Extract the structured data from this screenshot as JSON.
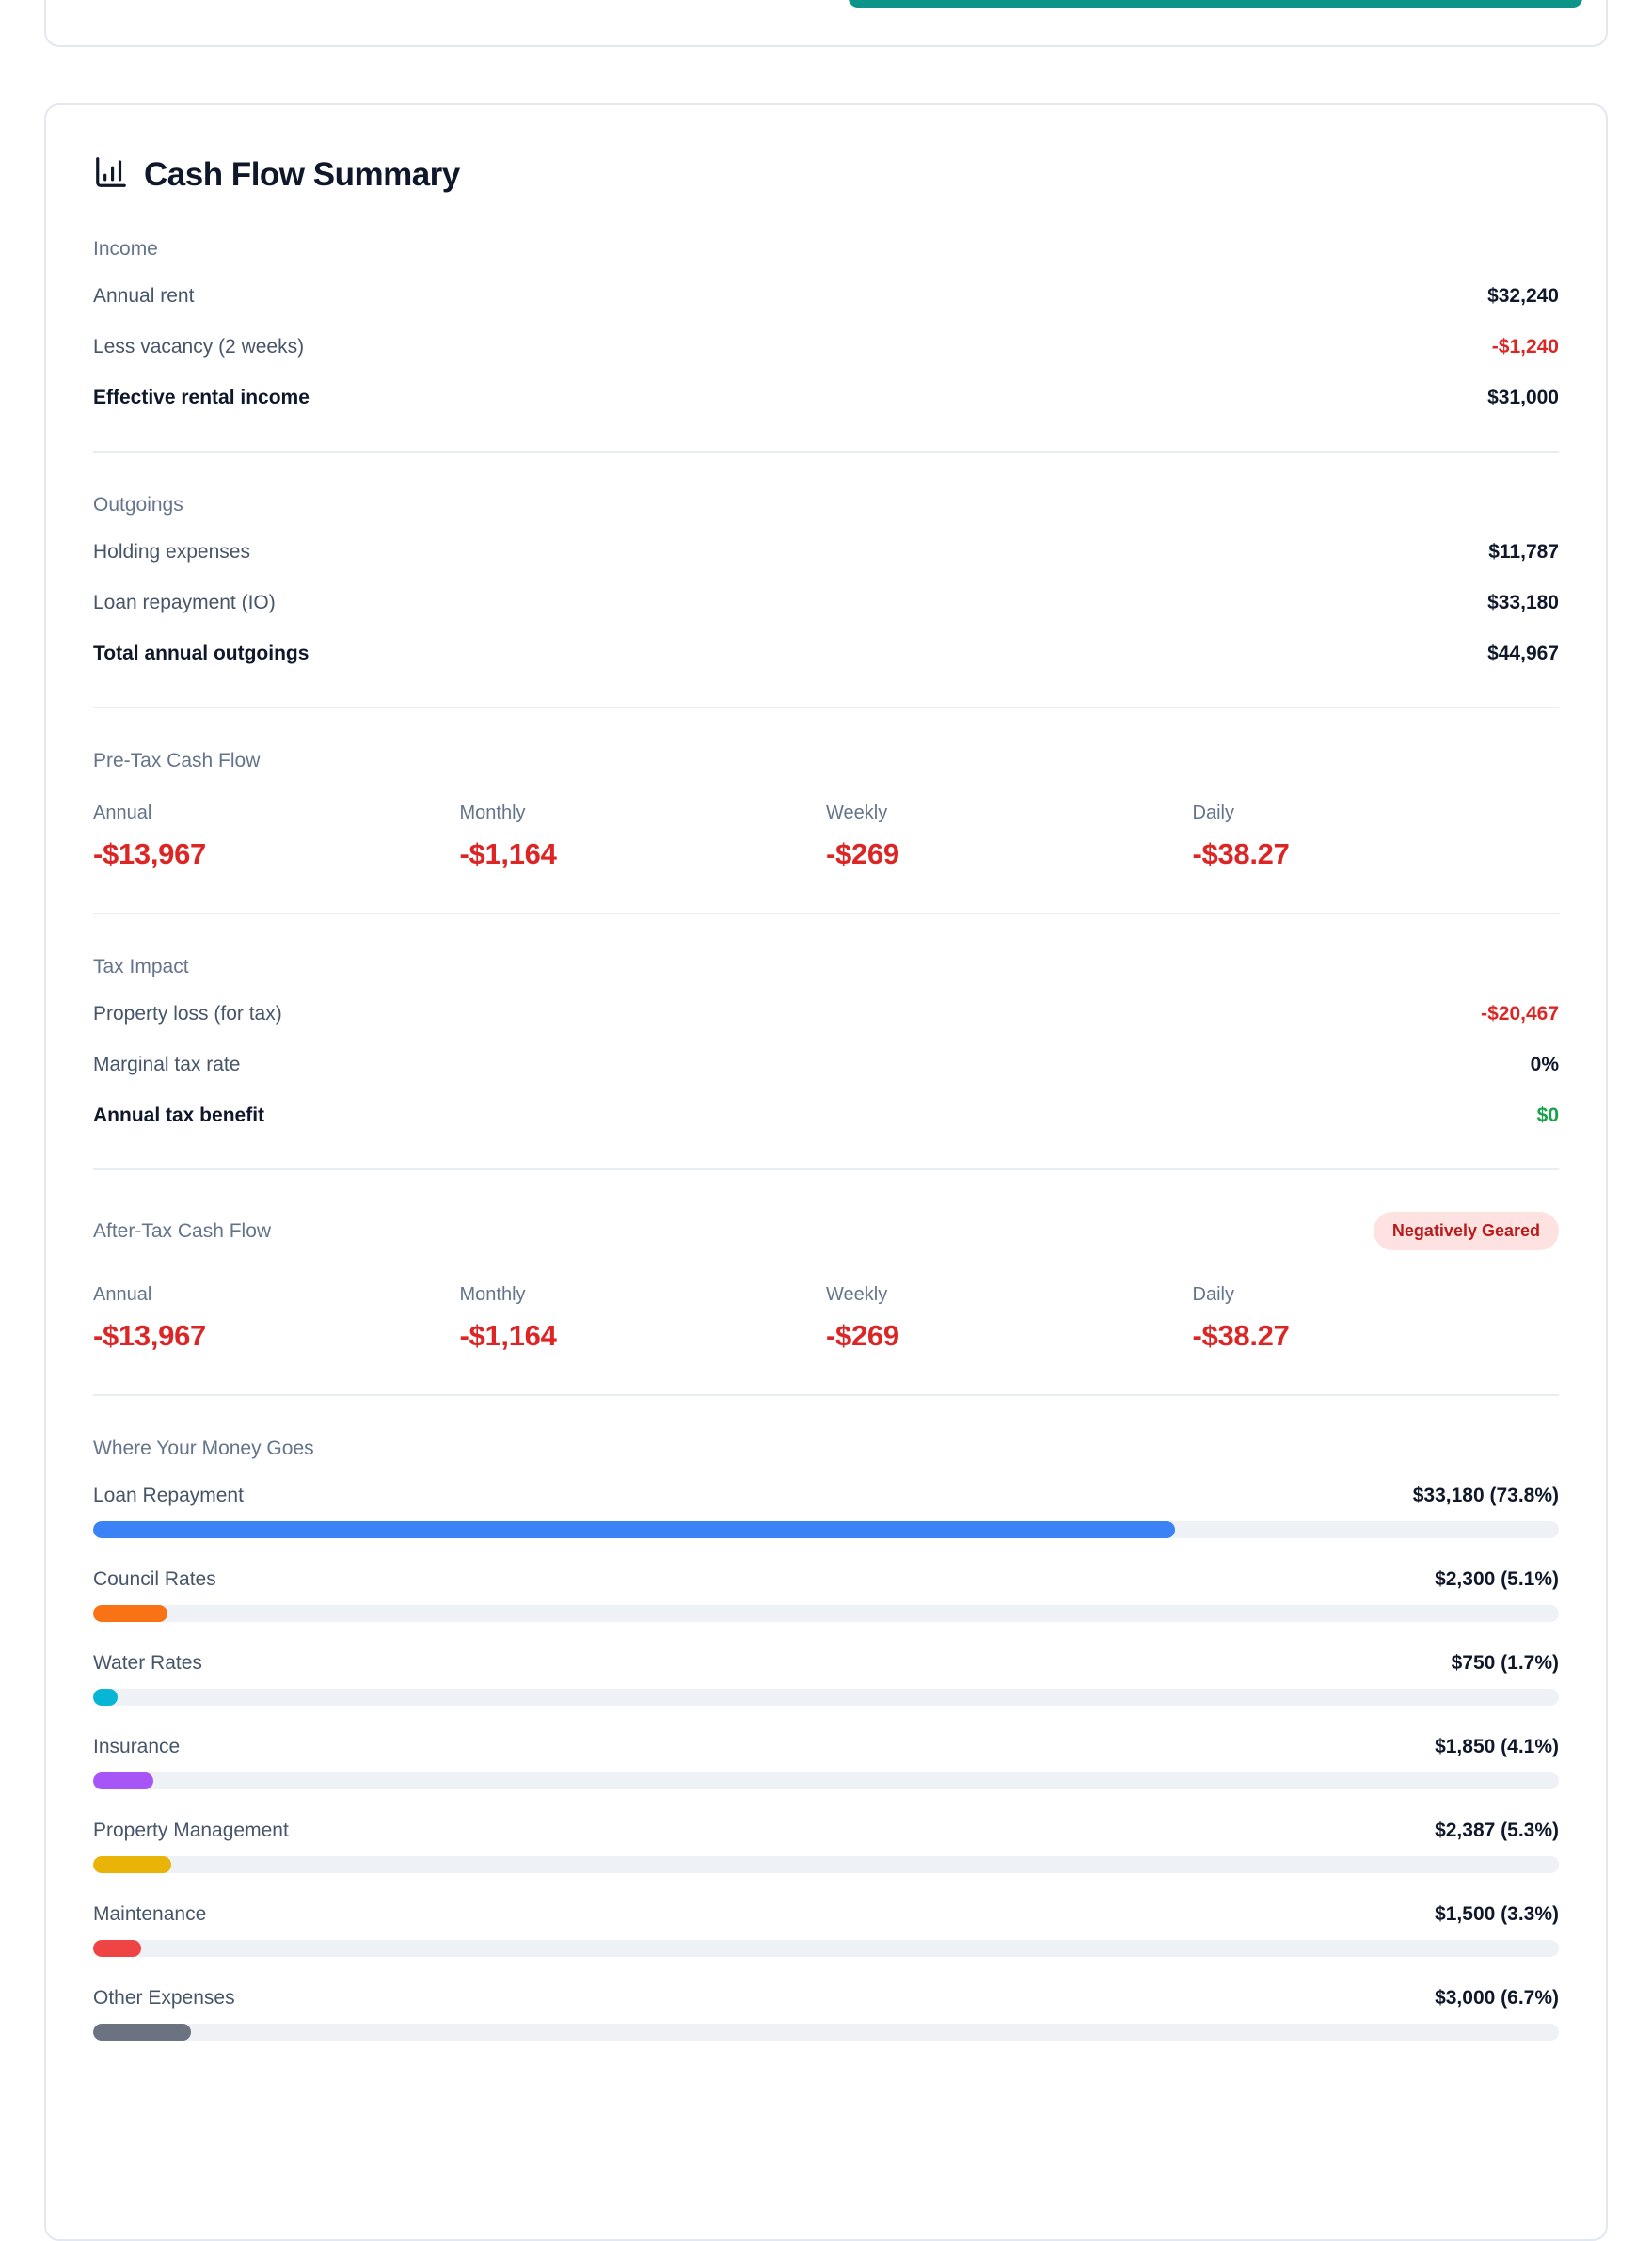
{
  "top_card": {
    "button_color": "#0d9488"
  },
  "summary": {
    "title": "Cash Flow Summary",
    "income": {
      "header": "Income",
      "rows": [
        {
          "label": "Annual rent",
          "value": "$32,240"
        },
        {
          "label": "Less vacancy (2 weeks)",
          "value": "-$1,240"
        },
        {
          "label": "Effective rental income",
          "value": "$31,000"
        }
      ]
    },
    "outgoings": {
      "header": "Outgoings",
      "rows": [
        {
          "label": "Holding expenses",
          "value": "$11,787"
        },
        {
          "label": "Loan repayment (IO)",
          "value": "$33,180"
        },
        {
          "label": "Total annual outgoings",
          "value": "$44,967"
        }
      ]
    },
    "pretax": {
      "header": "Pre-Tax Cash Flow",
      "metrics": [
        {
          "label": "Annual",
          "value": "-$13,967"
        },
        {
          "label": "Monthly",
          "value": "-$1,164"
        },
        {
          "label": "Weekly",
          "value": "-$269"
        },
        {
          "label": "Daily",
          "value": "-$38.27"
        }
      ]
    },
    "tax": {
      "header": "Tax Impact",
      "rows": [
        {
          "label": "Property loss (for tax)",
          "value": "-$20,467"
        },
        {
          "label": "Marginal tax rate",
          "value": "0%"
        },
        {
          "label": "Annual tax benefit",
          "value": "$0"
        }
      ]
    },
    "aftertax": {
      "header": "After-Tax Cash Flow",
      "badge": "Negatively Geared",
      "metrics": [
        {
          "label": "Annual",
          "value": "-$13,967"
        },
        {
          "label": "Monthly",
          "value": "-$1,164"
        },
        {
          "label": "Weekly",
          "value": "-$269"
        },
        {
          "label": "Daily",
          "value": "-$38.27"
        }
      ]
    },
    "breakdown": {
      "header": "Where Your Money Goes",
      "items": [
        {
          "label": "Loan Repayment",
          "value": "$33,180 (73.8%)",
          "pct": 73.8,
          "color": "#3b82f6"
        },
        {
          "label": "Council Rates",
          "value": "$2,300 (5.1%)",
          "pct": 5.1,
          "color": "#f97316"
        },
        {
          "label": "Water Rates",
          "value": "$750 (1.7%)",
          "pct": 1.7,
          "color": "#06b6d4"
        },
        {
          "label": "Insurance",
          "value": "$1,850 (4.1%)",
          "pct": 4.1,
          "color": "#a855f7"
        },
        {
          "label": "Property Management",
          "value": "$2,387 (5.3%)",
          "pct": 5.3,
          "color": "#eab308"
        },
        {
          "label": "Maintenance",
          "value": "$1,500 (3.3%)",
          "pct": 3.3,
          "color": "#ef4444"
        },
        {
          "label": "Other Expenses",
          "value": "$3,000 (6.7%)",
          "pct": 6.7,
          "color": "#6b7280"
        }
      ]
    }
  }
}
